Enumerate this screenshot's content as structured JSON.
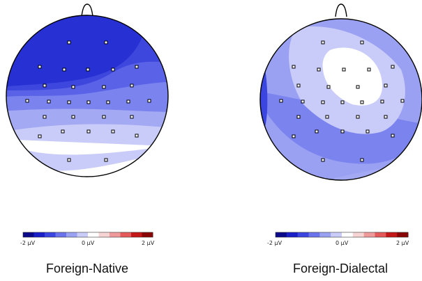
{
  "maps": [
    {
      "title": "Foreign-Native",
      "scale": {
        "min_label": "-2 μV",
        "mid_label": "0 μV",
        "max_label": "2 μV"
      }
    },
    {
      "title": "Foreign-Dialectal",
      "scale": {
        "min_label": "-2 μV",
        "mid_label": "0 μV",
        "max_label": "2 μV"
      }
    }
  ],
  "colorbar_colors": [
    "#0a0a8a",
    "#1a1fc8",
    "#3b46e0",
    "#6a73ec",
    "#9aa1f2",
    "#c9ccf8",
    "#ffffff",
    "#f7d4d4",
    "#ee9a9a",
    "#e45a5a",
    "#c41818",
    "#8a0606"
  ]
}
